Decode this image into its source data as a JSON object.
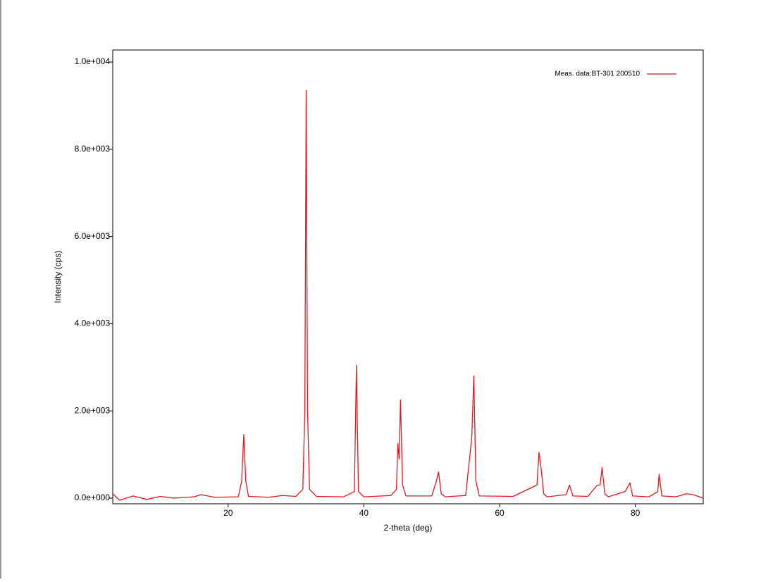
{
  "chart_data": {
    "type": "line",
    "xlabel": "2-theta (deg)",
    "ylabel": "Intensity (cps)",
    "x": [
      3,
      4,
      6,
      8,
      10,
      12,
      15,
      16,
      18,
      21.5,
      22,
      22.3,
      22.6,
      23,
      26,
      28,
      30,
      31,
      31.3,
      31.5,
      31.7,
      32,
      33,
      37,
      38.6,
      38.9,
      39.2,
      40,
      44,
      44.8,
      45.0,
      45.2,
      45.4,
      45.7,
      46.2,
      50,
      50.7,
      51,
      51.4,
      52,
      55,
      55.9,
      56.2,
      56.5,
      57,
      62,
      65.5,
      65.8,
      66.1,
      66.5,
      67,
      69.8,
      70.3,
      70.8,
      73,
      74.4,
      74.8,
      75.1,
      75.5,
      76,
      78.5,
      79.2,
      79.6,
      82,
      83.3,
      83.5,
      83.9,
      86,
      87.5,
      88.5,
      90
    ],
    "series": [
      {
        "name": "Meas. data:BT-301  200510",
        "color": "#e8141c",
        "values": [
          100,
          -50,
          50,
          -30,
          40,
          0,
          30,
          80,
          20,
          30,
          400,
          1450,
          400,
          40,
          20,
          60,
          40,
          200,
          2000,
          9350,
          2000,
          200,
          40,
          30,
          150,
          3050,
          150,
          30,
          60,
          200,
          1250,
          900,
          2250,
          300,
          50,
          50,
          400,
          600,
          100,
          30,
          60,
          1400,
          2800,
          400,
          50,
          40,
          300,
          1050,
          700,
          100,
          30,
          80,
          300,
          50,
          40,
          300,
          300,
          700,
          100,
          30,
          150,
          350,
          50,
          30,
          150,
          550,
          50,
          30,
          100,
          80,
          0
        ]
      }
    ],
    "xlim": [
      3,
      90
    ],
    "ylim": [
      -130,
      10275
    ],
    "xticks": [
      20,
      40,
      60,
      80
    ],
    "yticks": [
      {
        "value": 0,
        "label": "0.0e+000"
      },
      {
        "value": 2000,
        "label": "2.0e+003"
      },
      {
        "value": 4000,
        "label": "4.0e+003"
      },
      {
        "value": 6000,
        "label": "6.0e+003"
      },
      {
        "value": 8000,
        "label": "8.0e+003"
      },
      {
        "value": 10000,
        "label": "1.0e+004"
      }
    ],
    "grid": false,
    "legend": "upper right"
  }
}
